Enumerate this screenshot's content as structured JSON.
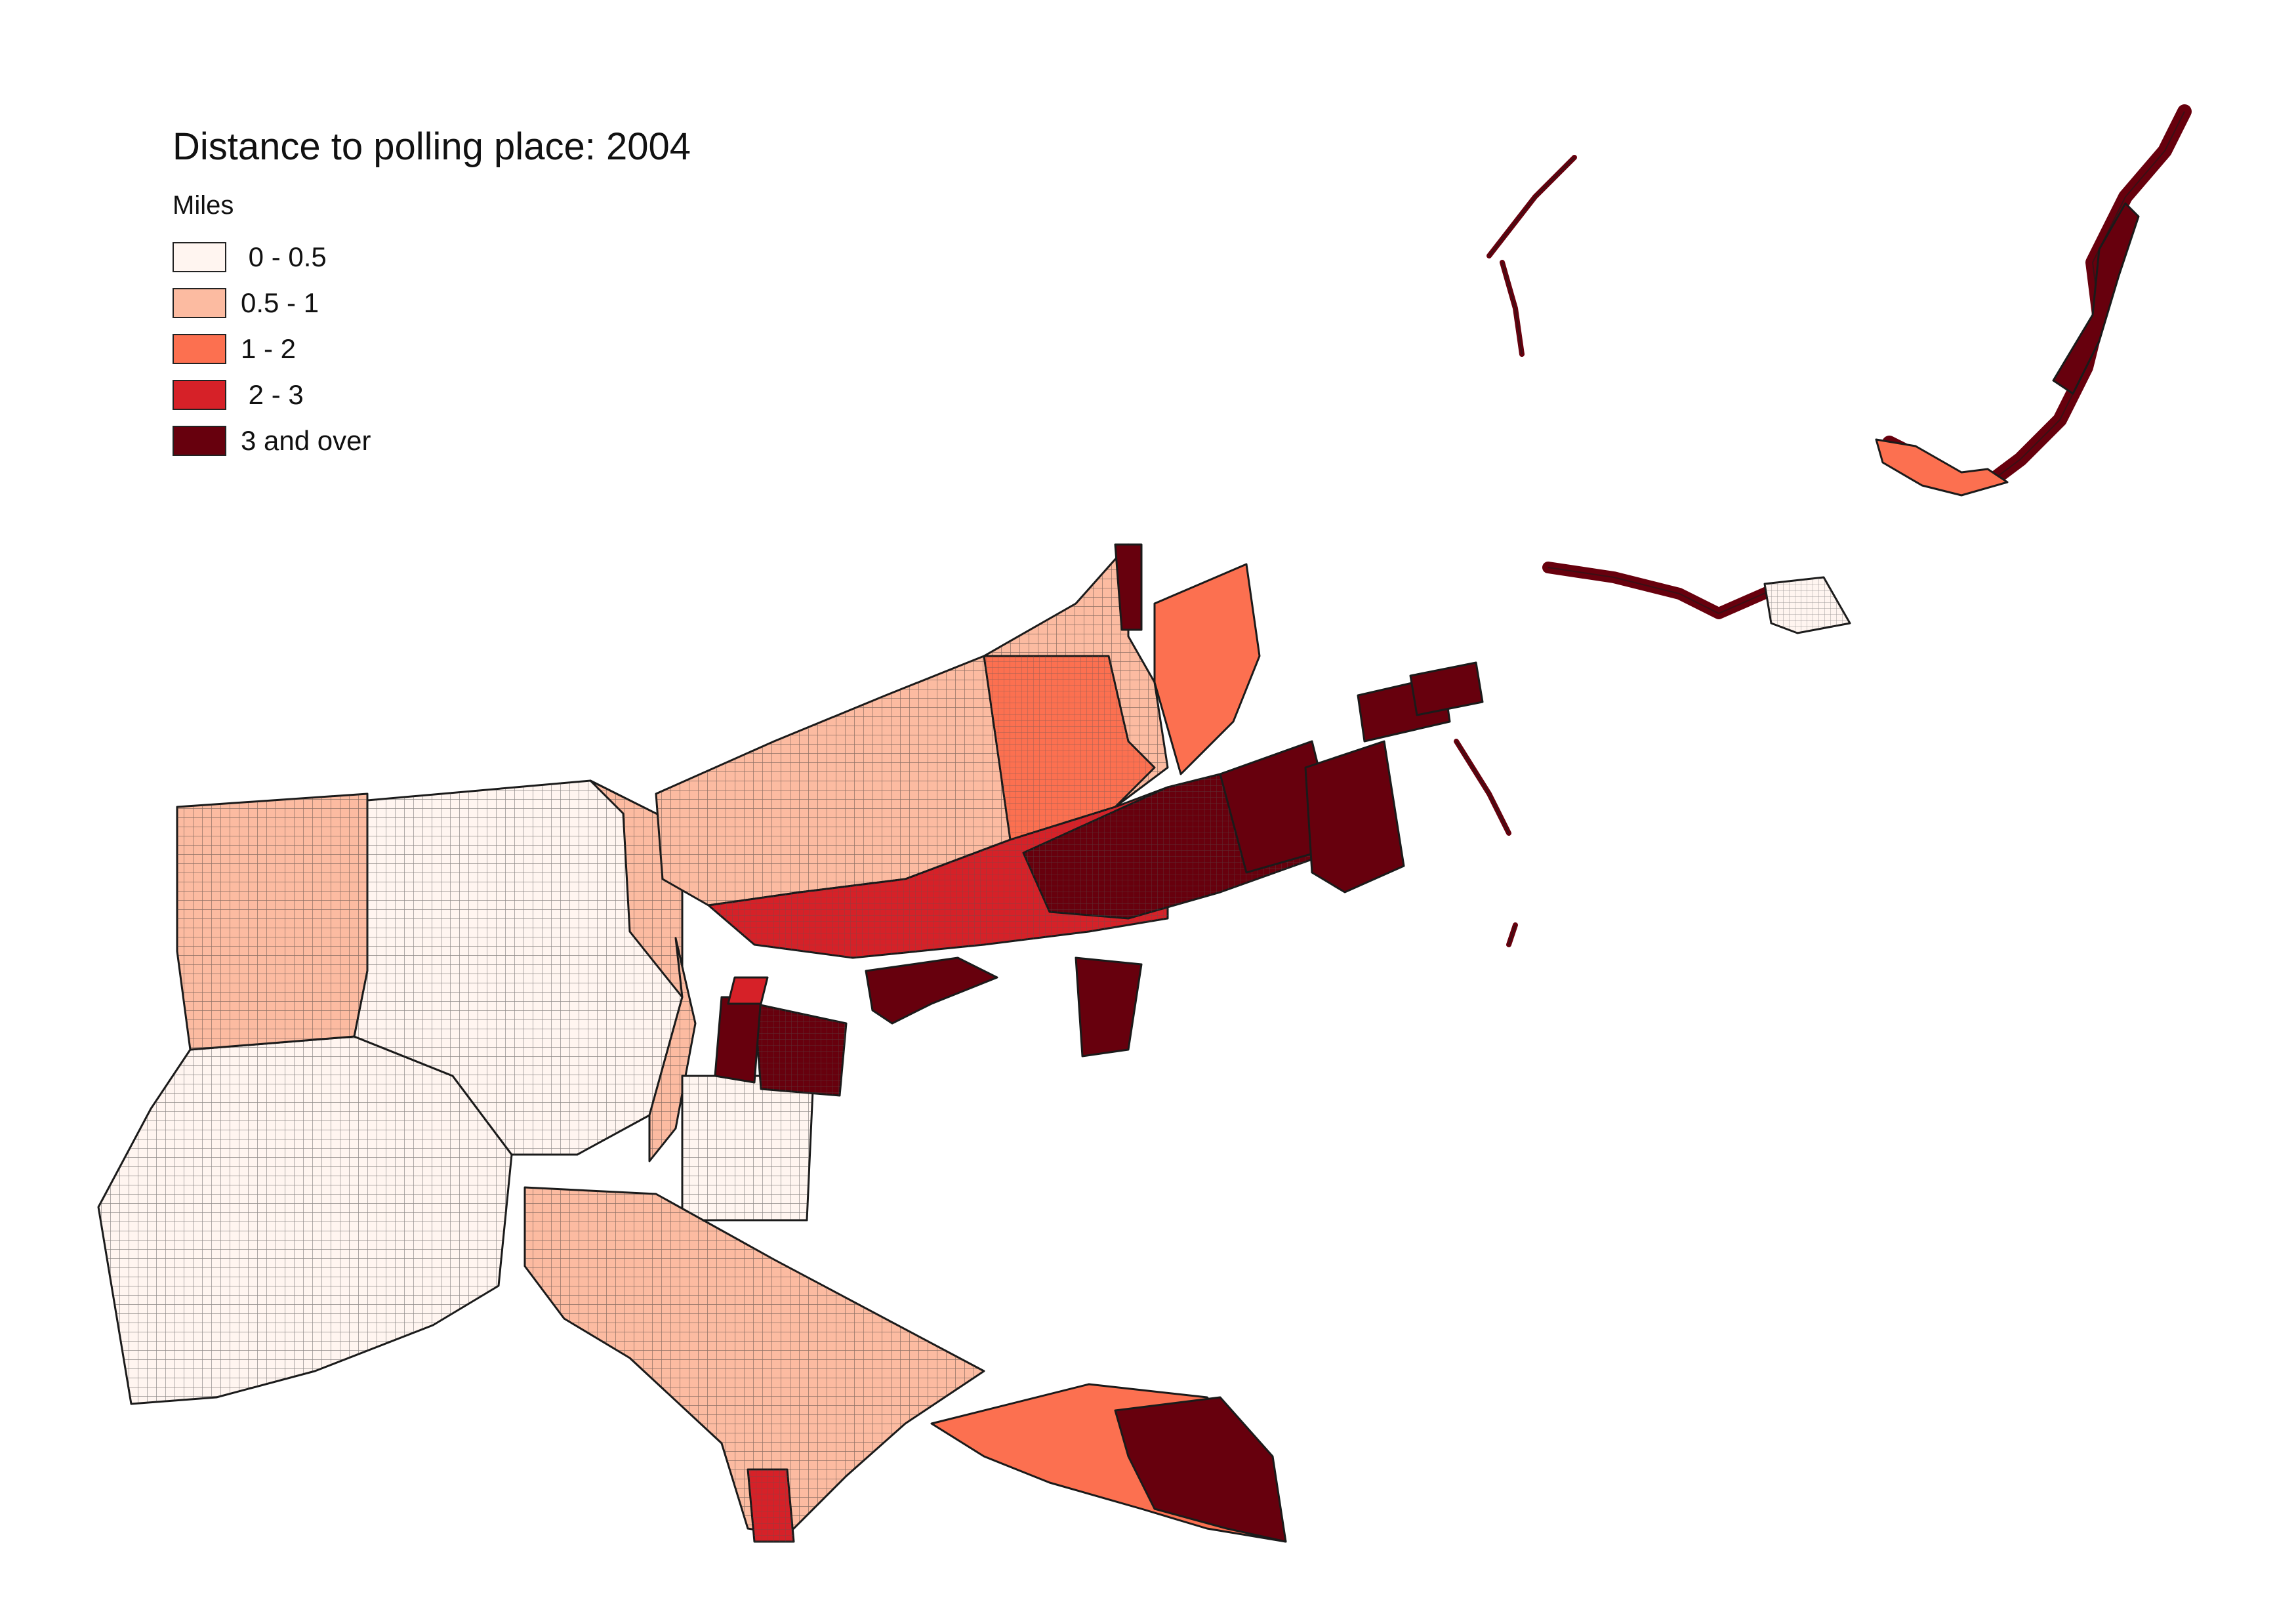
{
  "map": {
    "title": "Distance to polling place: 2004",
    "legend": {
      "units": "Miles",
      "classes": [
        {
          "label": " 0 - 0.5",
          "color": "#fff5f0"
        },
        {
          "label": "0.5 - 1",
          "color": "#fcbba1"
        },
        {
          "label": "1 - 2",
          "color": "#fc7050"
        },
        {
          "label": " 2 - 3",
          "color": "#d62128"
        },
        {
          "label": "3 and over",
          "color": "#67000d"
        }
      ]
    },
    "outline_color": "#1a1a1a"
  }
}
